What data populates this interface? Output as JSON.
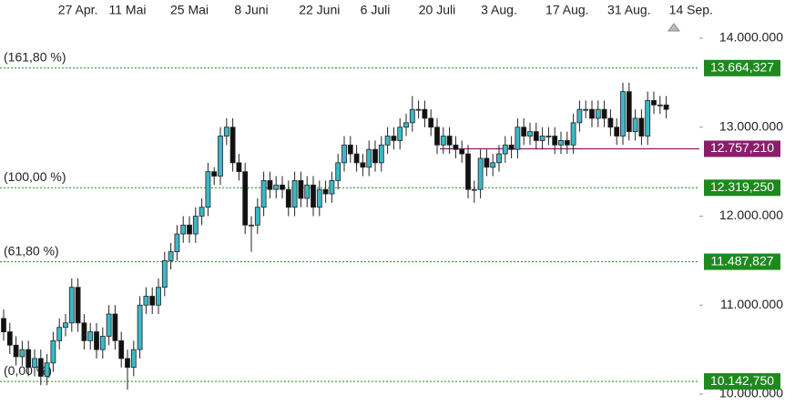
{
  "chart_data": {
    "type": "candlestick",
    "categories": [
      null,
      null,
      null,
      null,
      null,
      null,
      null,
      null,
      null,
      null,
      null,
      null,
      "27 Apr.",
      null,
      null,
      null,
      null,
      null,
      null,
      null,
      "11 Mai",
      null,
      null,
      null,
      null,
      null,
      null,
      null,
      null,
      null,
      "25 Mai",
      null,
      null,
      null,
      null,
      null,
      null,
      null,
      null,
      null,
      "8 Juni",
      null,
      null,
      null,
      null,
      null,
      null,
      null,
      null,
      null,
      null,
      "22 Juni",
      null,
      null,
      null,
      null,
      null,
      null,
      null,
      null,
      "6 Juli",
      null,
      null,
      null,
      null,
      null,
      null,
      null,
      null,
      null,
      "20 Juli",
      null,
      null,
      null,
      null,
      null,
      null,
      null,
      null,
      null,
      "3 Aug.",
      null,
      null,
      null,
      null,
      null,
      null,
      null,
      null,
      null,
      null,
      "17 Aug.",
      null,
      null,
      null,
      null,
      null,
      null,
      null,
      null,
      null,
      "31 Aug.",
      null,
      null,
      null,
      null,
      null,
      null,
      null,
      null,
      null,
      "14 Sep."
    ],
    "open": [
      10850000,
      10700000,
      10550000,
      10420000,
      10500000,
      10300000,
      10400000,
      10200000,
      10350000,
      10600000,
      10750000,
      10800000,
      11200000,
      10800000,
      10600000,
      10700000,
      10500000,
      10650000,
      10900000,
      10600000,
      10400000,
      10300000,
      10500000,
      11000000,
      11100000,
      11000000,
      11200000,
      11500000,
      11600000,
      11800000,
      11900000,
      11800000,
      12000000,
      12100000,
      12500000,
      12450000,
      12900000,
      13000000,
      12600000,
      12500000,
      11900000,
      11900000,
      12100000,
      12400000,
      12300000,
      12350000,
      12300000,
      12100000,
      12400000,
      12200000,
      12350000,
      12100000,
      12300000,
      12250000,
      12400000,
      12600000,
      12800000,
      12700000,
      12600000,
      12550000,
      12750000,
      12600000,
      12800000,
      12900000,
      12850000,
      13000000,
      13050000,
      13200000,
      13200000,
      13100000,
      13000000,
      12800000,
      12900000,
      12800000,
      12750000,
      12700000,
      12300000,
      12300000,
      12650000,
      12550000,
      12600000,
      12700000,
      12800000,
      12750000,
      13000000,
      12900000,
      12950000,
      12850000,
      12900000,
      12900000,
      12800000,
      12850000,
      12800000,
      13050000,
      13200000,
      13200000,
      13100000,
      13200000,
      13100000,
      13000000,
      12900000,
      13400000,
      12950000,
      13100000,
      12900000,
      13300000,
      13250000,
      13250000,
      null,
      null,
      null,
      null
    ],
    "high": [
      10950000,
      10800000,
      10650000,
      10600000,
      10600000,
      10500000,
      10500000,
      10450000,
      10700000,
      10850000,
      10900000,
      11300000,
      11300000,
      10900000,
      10800000,
      10800000,
      10750000,
      11000000,
      11000000,
      10700000,
      10500000,
      10600000,
      11100000,
      11200000,
      11200000,
      11300000,
      11600000,
      11700000,
      11900000,
      12000000,
      12000000,
      12100000,
      12200000,
      12600000,
      12550000,
      13000000,
      13100000,
      13100000,
      12700000,
      12600000,
      12000000,
      12200000,
      12500000,
      12500000,
      12450000,
      12450000,
      12400000,
      12500000,
      12500000,
      12450000,
      12450000,
      12400000,
      12400000,
      12500000,
      12700000,
      12900000,
      12900000,
      12800000,
      12700000,
      12850000,
      12850000,
      12900000,
      13000000,
      13000000,
      13100000,
      13150000,
      13350000,
      13300000,
      13300000,
      13200000,
      13100000,
      13000000,
      13000000,
      12900000,
      12850000,
      12800000,
      12400000,
      12750000,
      12750000,
      12700000,
      12800000,
      12900000,
      12900000,
      13100000,
      13100000,
      13050000,
      13050000,
      13000000,
      13000000,
      13000000,
      12950000,
      12950000,
      13150000,
      13300000,
      13300000,
      13300000,
      13300000,
      13300000,
      13200000,
      13100000,
      13500000,
      13500000,
      13200000,
      13200000,
      13400000,
      13400000,
      13350000,
      13350000,
      null,
      null,
      null,
      null
    ],
    "low": [
      10600000,
      10450000,
      10320000,
      10320000,
      10200000,
      10200000,
      10100000,
      10100000,
      10250000,
      10500000,
      10650000,
      10700000,
      10700000,
      10500000,
      10500000,
      10400000,
      10400000,
      10550000,
      10500000,
      10300000,
      10050000,
      10200000,
      10400000,
      10900000,
      10900000,
      10900000,
      11100000,
      11400000,
      11500000,
      11700000,
      11700000,
      11700000,
      11900000,
      12000000,
      12350000,
      12350000,
      12800000,
      12500000,
      12400000,
      11800000,
      11600000,
      11800000,
      12000000,
      12200000,
      12200000,
      12200000,
      12000000,
      12000000,
      12100000,
      12100000,
      12000000,
      12000000,
      12150000,
      12150000,
      12300000,
      12500000,
      12600000,
      12500000,
      12450000,
      12450000,
      12500000,
      12500000,
      12700000,
      12750000,
      12750000,
      12900000,
      12950000,
      13100000,
      13000000,
      12900000,
      12700000,
      12700000,
      12700000,
      12650000,
      12600000,
      12200000,
      12150000,
      12200000,
      12450000,
      12450000,
      12500000,
      12600000,
      12650000,
      12650000,
      12800000,
      12800000,
      12750000,
      12750000,
      12800000,
      12700000,
      12700000,
      12700000,
      12700000,
      12950000,
      13100000,
      13000000,
      13000000,
      13000000,
      12900000,
      12800000,
      12800000,
      12850000,
      12850000,
      12800000,
      12800000,
      13150000,
      13150000,
      13100000,
      null,
      null,
      null,
      null
    ],
    "close": [
      10700000,
      10550000,
      10420000,
      10500000,
      10300000,
      10400000,
      10200000,
      10350000,
      10600000,
      10750000,
      10800000,
      11200000,
      10800000,
      10600000,
      10700000,
      10500000,
      10650000,
      10900000,
      10600000,
      10400000,
      10300000,
      10500000,
      11000000,
      11100000,
      11000000,
      11200000,
      11500000,
      11600000,
      11800000,
      11900000,
      11800000,
      12000000,
      12100000,
      12500000,
      12450000,
      12900000,
      13000000,
      12600000,
      12500000,
      11900000,
      11900000,
      12100000,
      12400000,
      12300000,
      12350000,
      12300000,
      12100000,
      12400000,
      12200000,
      12350000,
      12100000,
      12300000,
      12250000,
      12400000,
      12600000,
      12800000,
      12700000,
      12600000,
      12550000,
      12750000,
      12600000,
      12800000,
      12900000,
      12850000,
      13000000,
      13050000,
      13200000,
      13200000,
      13100000,
      13000000,
      12800000,
      12900000,
      12800000,
      12750000,
      12700000,
      12300000,
      12300000,
      12650000,
      12550000,
      12600000,
      12700000,
      12800000,
      12750000,
      13000000,
      12900000,
      12950000,
      12850000,
      12900000,
      12900000,
      12800000,
      12850000,
      12800000,
      13050000,
      13200000,
      13200000,
      13100000,
      13200000,
      13100000,
      13000000,
      12900000,
      13400000,
      12950000,
      13100000,
      12900000,
      13300000,
      13250000,
      13250000,
      13200000,
      null,
      null,
      null,
      null
    ],
    "up_color": "#3bb8c8",
    "down_color": "#111111",
    "ylim": [
      9765000,
      14225000
    ],
    "yticks": [
      {
        "value": 10000000,
        "label": "10.000.000"
      },
      {
        "value": 11000000,
        "label": "11.000.000"
      },
      {
        "value": 12000000,
        "label": "12.000.000"
      },
      {
        "value": 13000000,
        "label": "13.000.000"
      },
      {
        "value": 14000000,
        "label": "14.000.000"
      }
    ],
    "level_color": "#1e8a1e",
    "levels": [
      {
        "label": "(161,80 %)",
        "value": 13664327,
        "value_label": "13.664,327"
      },
      {
        "label": "(100,00 %)",
        "value": 12319250,
        "value_label": "12.319,250"
      },
      {
        "label": "(61,80 %)",
        "value": 11487827,
        "value_label": "11.487,827"
      },
      {
        "label": "(0,00 %)",
        "value": 10142750,
        "value_label": "10.142,750"
      }
    ],
    "reference_line": {
      "value": 12757210,
      "value_label": "12.757,210",
      "color": "#8b1e6b"
    }
  }
}
